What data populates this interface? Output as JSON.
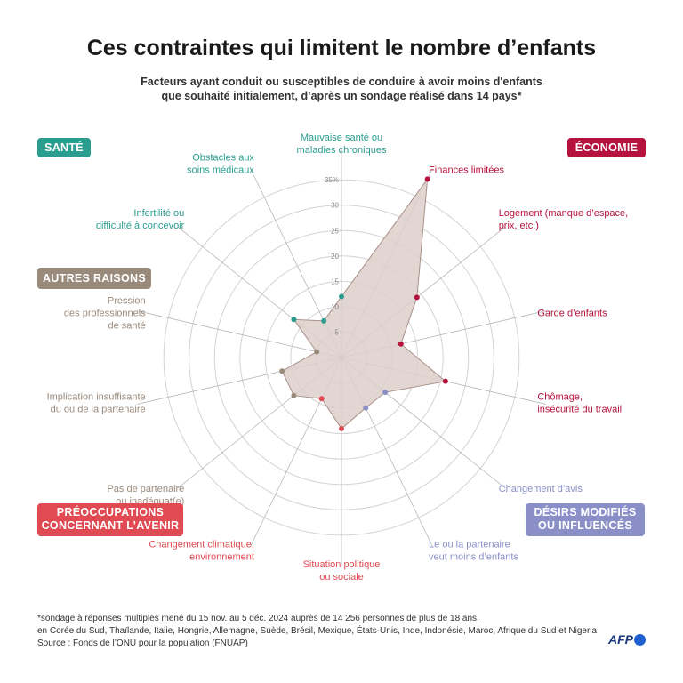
{
  "title": "Ces contraintes qui limitent le nombre d’enfants",
  "subtitle": [
    "Facteurs ayant conduit ou susceptibles de conduire à avoir moins d'enfants",
    "que souhaité initialement, d’après un sondage réalisé dans 14 pays*"
  ],
  "colors": {
    "sante": "#2a9d8f",
    "economie": "#b5123e",
    "autres": "#9a8a7c",
    "preoccupations": "#e04a52",
    "desirs": "#8a8fc8",
    "polygon_fill": "#ddcfca",
    "polygon_stroke": "#a89088",
    "grid": "#d3d3d3"
  },
  "categories": {
    "sante": {
      "label": "SANTÉ"
    },
    "economie": {
      "label": "ÉCONOMIE"
    },
    "autres": {
      "label": "AUTRES RAISONS"
    },
    "preoccupations": {
      "label": [
        "PRÉOCCUPATIONS",
        "CONCERNANT L’AVENIR"
      ]
    },
    "desirs": {
      "label": [
        "DÉSIRS MODIFIÉS",
        "OU INFLUENCÉS"
      ]
    }
  },
  "chart_data": {
    "type": "radar",
    "title": "Ces contraintes qui limitent le nombre d’enfants",
    "unit": "%",
    "rlim": [
      0,
      35
    ],
    "ticks": [
      5,
      10,
      15,
      20,
      25,
      30,
      35
    ],
    "tick_labels": [
      "5",
      "10",
      "15",
      "20",
      "25",
      "30",
      "35%"
    ],
    "axes": [
      {
        "label": [
          "Mauvaise santé ou",
          "maladies chroniques"
        ],
        "category": "sante",
        "value": 12
      },
      {
        "label": [
          "Finances limitées"
        ],
        "category": "economie",
        "value": 39
      },
      {
        "label": [
          "Logement (manque d’espace,",
          "prix, etc.)"
        ],
        "category": "economie",
        "value": 19
      },
      {
        "label": [
          "Garde d’enfants"
        ],
        "category": "economie",
        "value": 12
      },
      {
        "label": [
          "Chômage,",
          "insécurité du travail"
        ],
        "category": "economie",
        "value": 21
      },
      {
        "label": [
          "Changement d’avis"
        ],
        "category": "desirs",
        "value": 11
      },
      {
        "label": [
          "Le ou la partenaire",
          "veut moins d’enfants"
        ],
        "category": "desirs",
        "value": 11
      },
      {
        "label": [
          "Situation politique",
          "ou sociale"
        ],
        "category": "preoccupations",
        "value": 14
      },
      {
        "label": [
          "Changement climatique,",
          "environnement"
        ],
        "category": "preoccupations",
        "value": 9
      },
      {
        "label": [
          "Pas de partenaire",
          "ou inadéquat(e)"
        ],
        "category": "autres",
        "value": 12
      },
      {
        "label": [
          "Implication insuffisante",
          "du ou de la partenaire"
        ],
        "category": "autres",
        "value": 12
      },
      {
        "label": [
          "Pression",
          "des professionnels",
          "de santé"
        ],
        "category": "autres",
        "value": 5
      },
      {
        "label": [
          "Infertilité ou",
          "difficulté à concevoir"
        ],
        "category": "sante",
        "value": 12
      },
      {
        "label": [
          "Obstacles aux",
          "soins médicaux"
        ],
        "category": "sante",
        "value": 8
      }
    ]
  },
  "footnote": [
    "*sondage à réponses multiples mené du 15 nov. au 5 déc. 2024 auprès de 14 256 personnes de plus de 18 ans,",
    "en Corée du Sud, Thaïlande, Italie, Hongrie, Allemagne, Suède, Brésil, Mexique, États-Unis, Inde, Indonésie, Maroc, Afrique du Sud et Nigeria",
    "Source : Fonds de l’ONU pour la population (FNUAP)"
  ],
  "logo": "AFP"
}
